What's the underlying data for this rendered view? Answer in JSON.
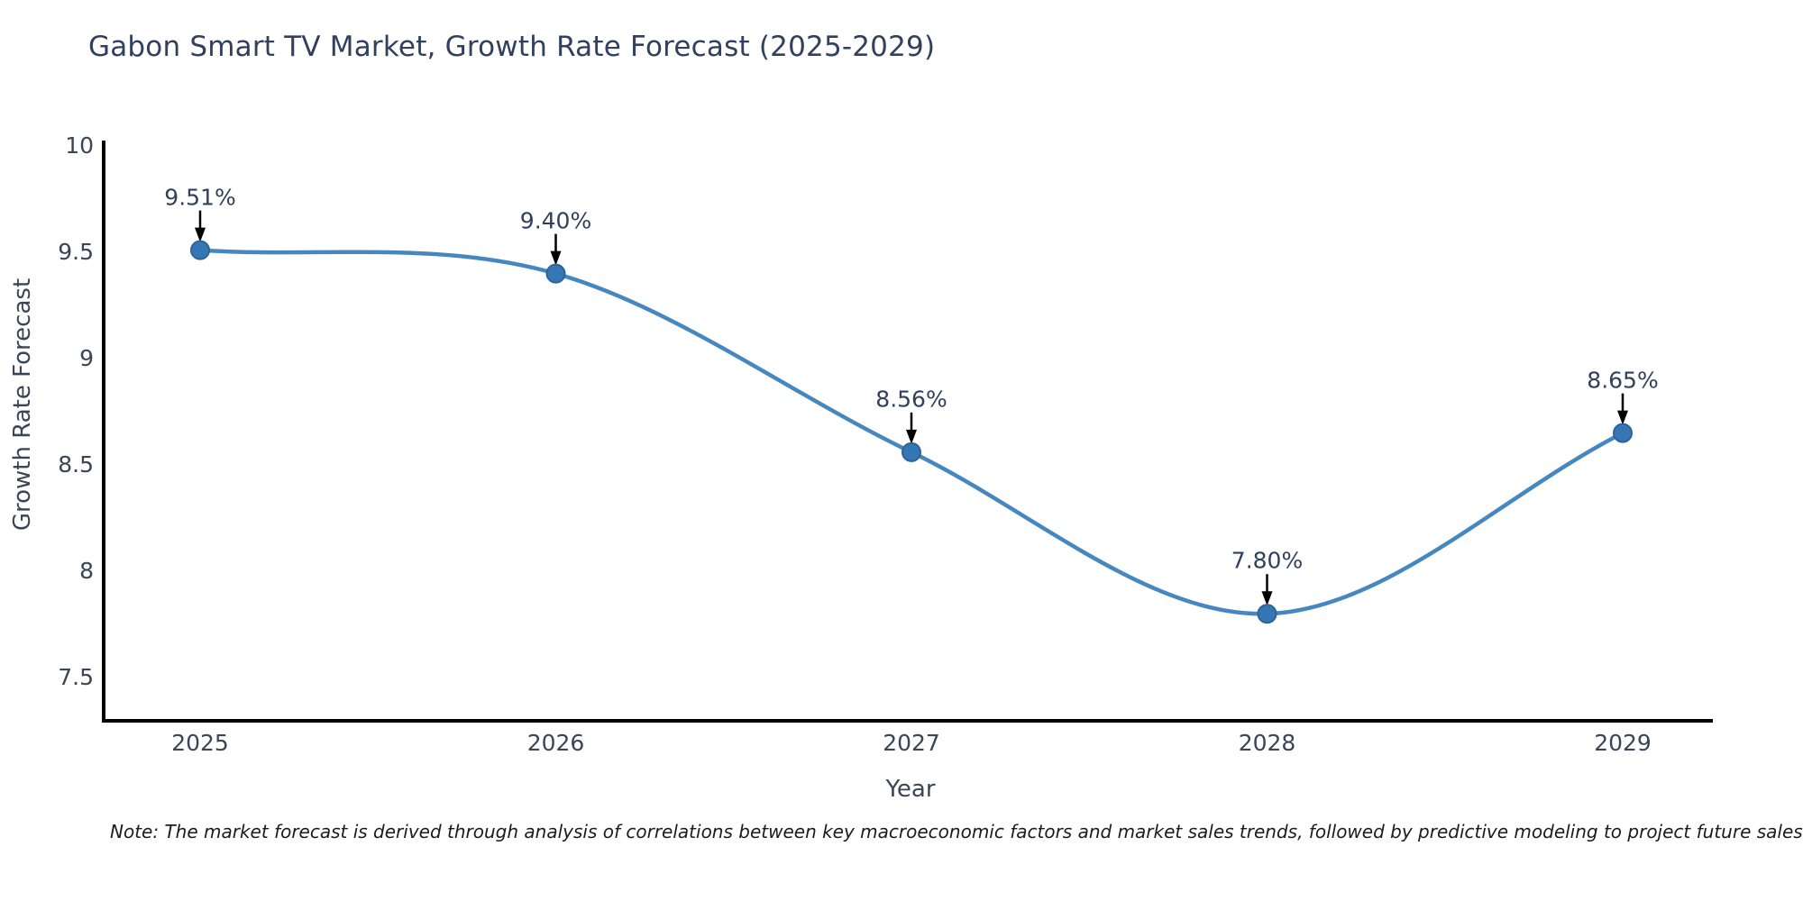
{
  "chart_data": {
    "type": "line",
    "title": "Gabon Smart TV Market, Growth Rate Forecast (2025-2029)",
    "xlabel": "Year",
    "ylabel": "Growth Rate Forecast",
    "categories": [
      "2025",
      "2026",
      "2027",
      "2028",
      "2029"
    ],
    "series": [
      {
        "name": "Growth Rate Forecast",
        "values": [
          9.51,
          9.4,
          8.56,
          7.8,
          8.65
        ]
      }
    ],
    "point_labels": [
      "9.51%",
      "9.40%",
      "8.56%",
      "7.80%",
      "8.65%"
    ],
    "y_tick_labels": [
      "10",
      "9.5",
      "9",
      "8.5",
      "8",
      "7.5"
    ],
    "ylim": [
      7.3,
      10
    ],
    "grid": false,
    "legend": "none",
    "smooth": true,
    "colors": {
      "line": "#4787bf",
      "marker_fill": "#3577b4",
      "marker_edge": "#2d6396",
      "annotation_arrow": "#000000",
      "axis": "#000000",
      "title_text": "#31405c",
      "tick_text": "#3a4558"
    }
  },
  "note": "Note: The market forecast is derived through analysis of correlations between key macroeconomic factors and market sales trends, followed by predictive modeling to project future sales"
}
